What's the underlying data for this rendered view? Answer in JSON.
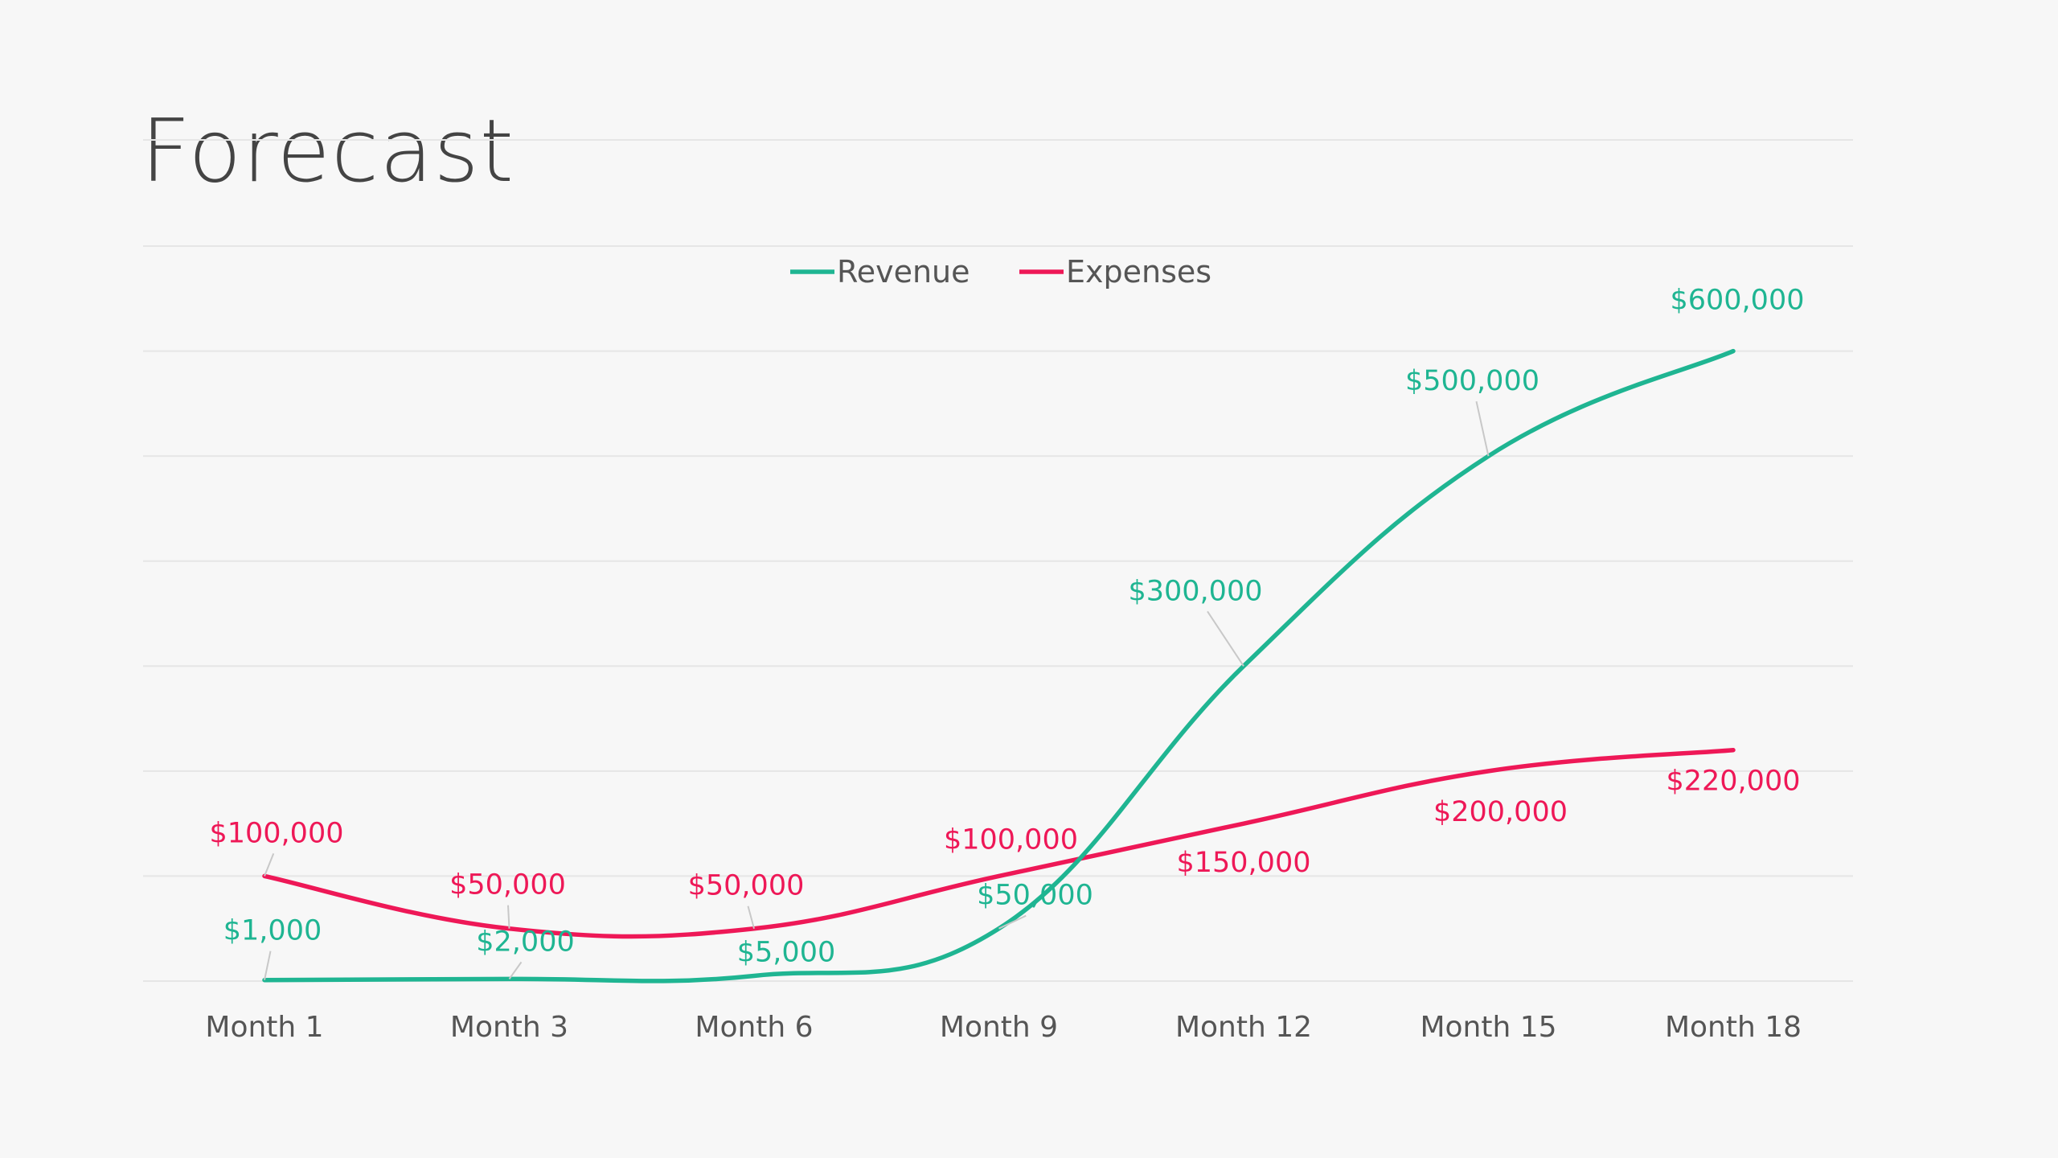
{
  "slide": {
    "title": "Forecast"
  },
  "colors": {
    "background": "#f7f7f7",
    "revenue": "#1fb592",
    "expenses": "#ee1857",
    "gridline": "#e6e6e6",
    "axis_text": "#555555",
    "title_text": "#444444"
  },
  "chart_data": {
    "type": "line",
    "smooth": true,
    "title": "",
    "xlabel": "",
    "ylabel": "",
    "categories": [
      "Month 1",
      "Month 3",
      "Month 6",
      "Month 9",
      "Month 12",
      "Month 15",
      "Month 18"
    ],
    "ylim": [
      0,
      700000
    ],
    "grid": true,
    "legend_position": "top-center",
    "series": [
      {
        "name": "Revenue",
        "color": "#1fb592",
        "values": [
          1000,
          2000,
          5000,
          50000,
          300000,
          500000,
          600000
        ],
        "labels": [
          "$1,000",
          "$2,000",
          "$5,000",
          "$50,000",
          "$300,000",
          "$500,000",
          "$600,000"
        ]
      },
      {
        "name": "Expenses",
        "color": "#ee1857",
        "values": [
          100000,
          50000,
          50000,
          100000,
          150000,
          200000,
          220000
        ],
        "labels": [
          "$100,000",
          "$50,000",
          "$50,000",
          "$100,000",
          "$150,000",
          "$200,000",
          "$220,000"
        ]
      }
    ]
  }
}
